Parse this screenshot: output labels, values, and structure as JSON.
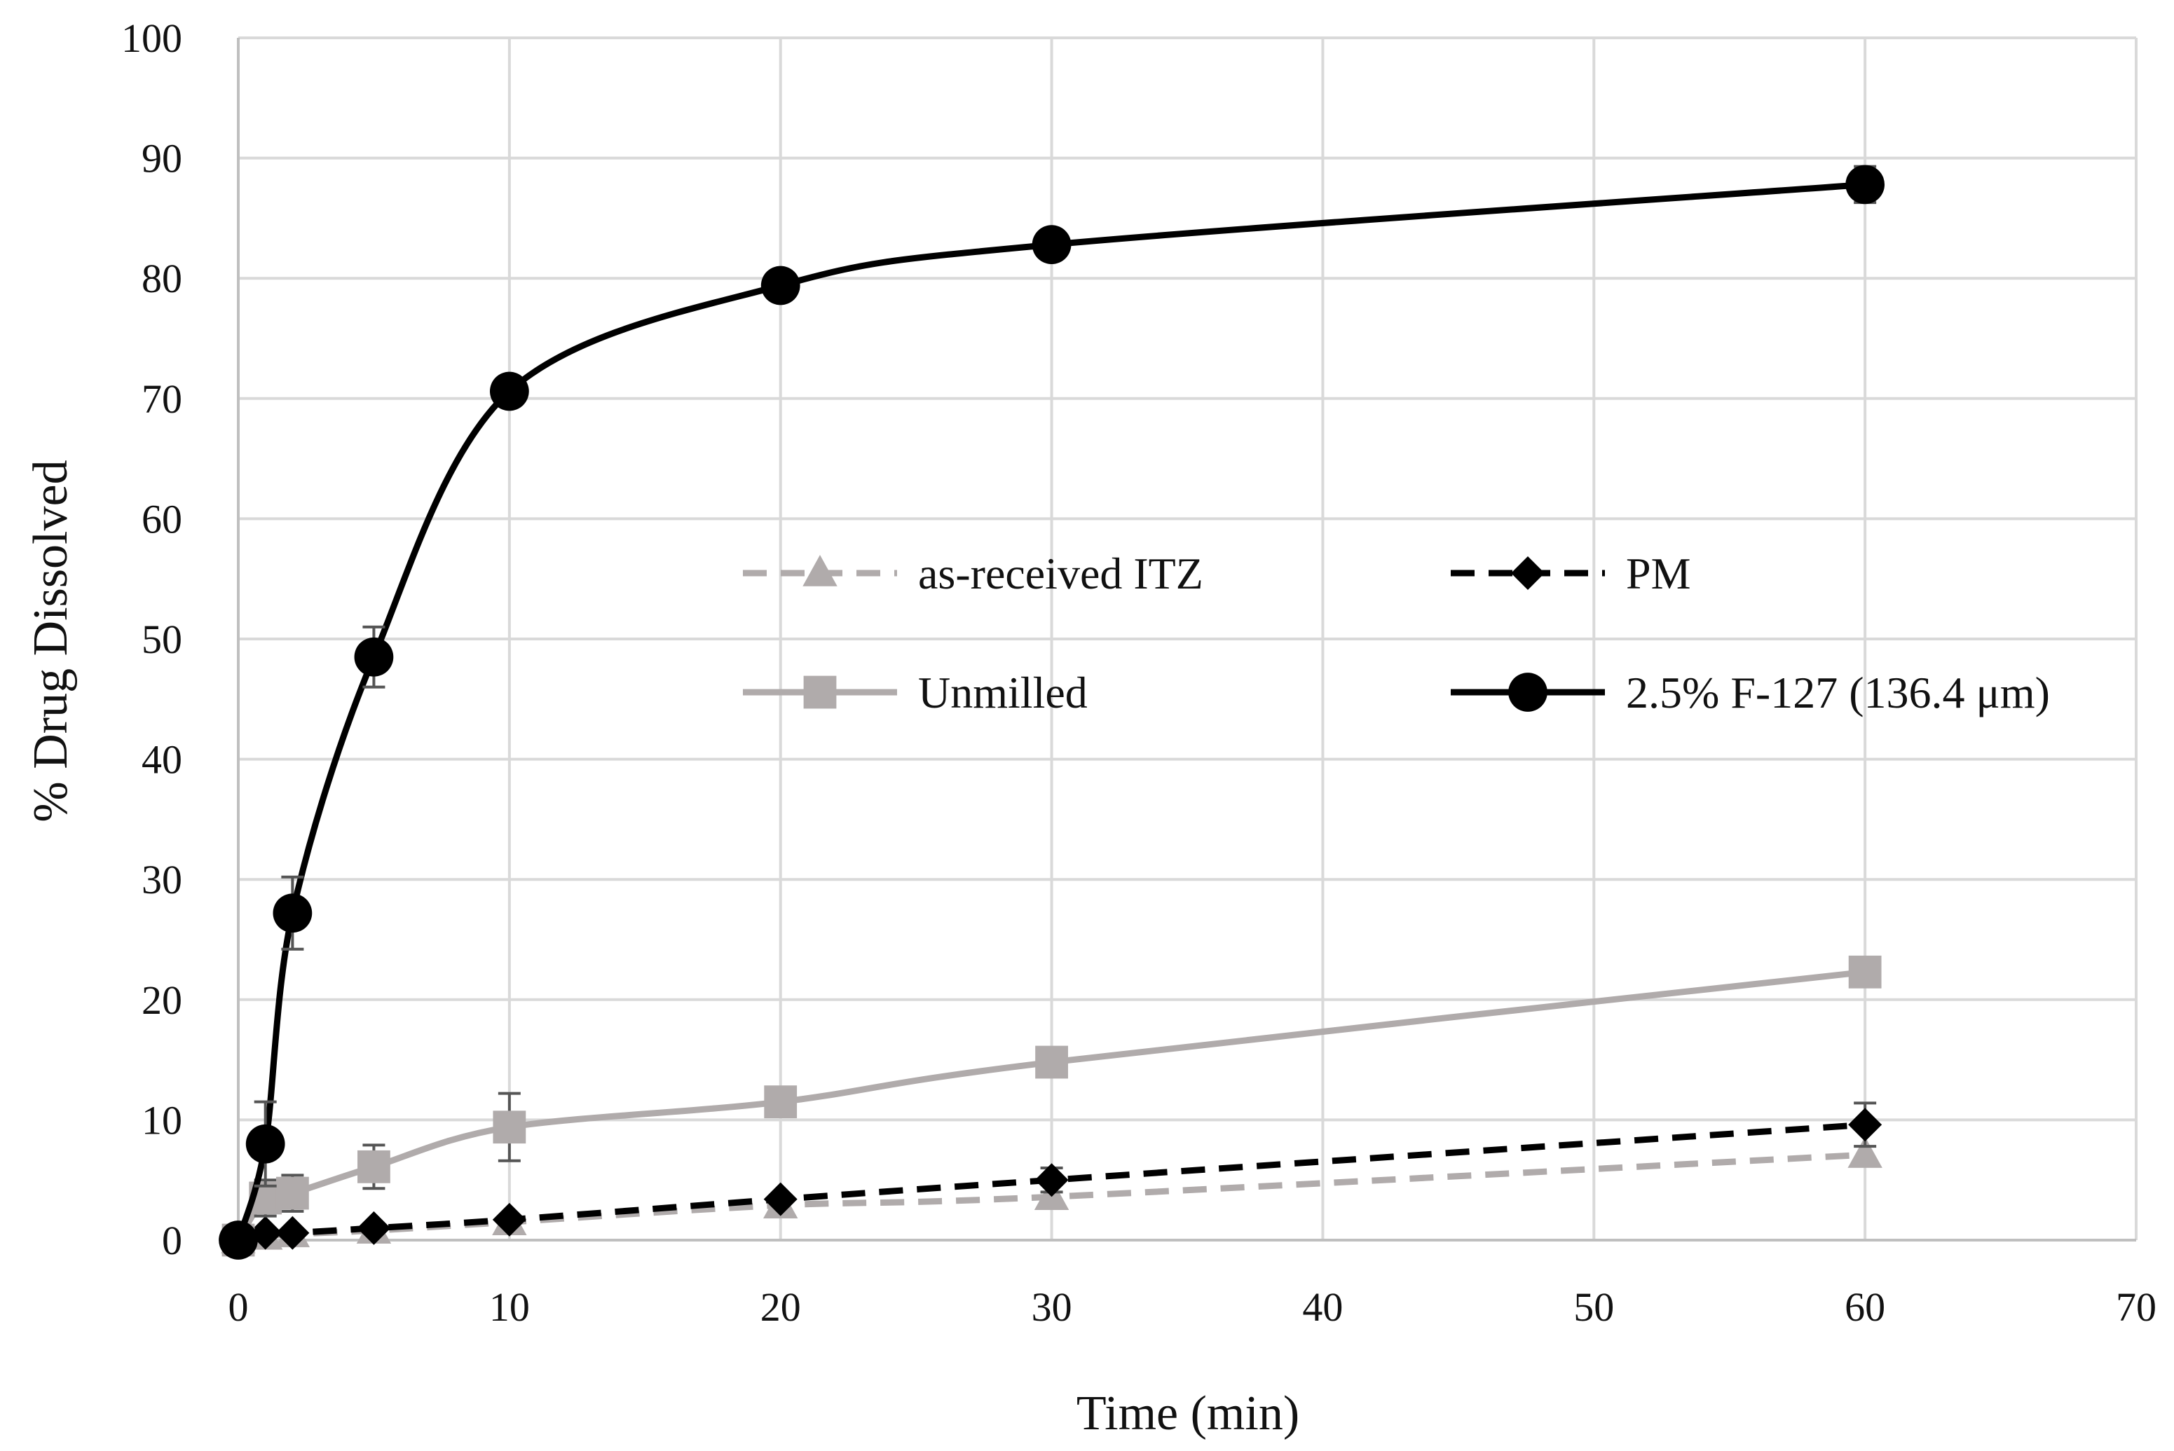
{
  "chart_data": {
    "type": "line",
    "title": "",
    "xlabel": "Time (min)",
    "ylabel": "% Drug Dissolved",
    "xlim": [
      0,
      70
    ],
    "ylim": [
      0,
      100
    ],
    "xticks": [
      0,
      10,
      20,
      30,
      40,
      50,
      60,
      70
    ],
    "yticks": [
      0,
      10,
      20,
      30,
      40,
      50,
      60,
      70,
      80,
      90,
      100
    ],
    "xtick_labels": [
      "0",
      "10",
      "20",
      "30",
      "40",
      "50",
      "60",
      "70"
    ],
    "ytick_labels": [
      "0",
      "10",
      "20",
      "30",
      "40",
      "50",
      "60",
      "70",
      "80",
      "90",
      "100"
    ],
    "grid": true,
    "legend_position": "center",
    "x": [
      0,
      1,
      2,
      5,
      10,
      20,
      30,
      60
    ],
    "series": [
      {
        "name": "as-received ITZ",
        "color": "#b0abab",
        "line": "dashed",
        "marker": "triangle",
        "values": [
          0,
          0.3,
          0.5,
          0.8,
          1.5,
          2.9,
          3.6,
          7.1
        ],
        "errors": [
          0,
          0,
          0,
          0,
          0,
          0,
          0,
          0
        ]
      },
      {
        "name": "PM",
        "color": "#000000",
        "line": "dashed",
        "marker": "diamond",
        "values": [
          0,
          0.6,
          0.6,
          1.0,
          1.7,
          3.4,
          5.0,
          9.6
        ],
        "errors": [
          0,
          0,
          0,
          0,
          0,
          0,
          1.0,
          1.8
        ]
      },
      {
        "name": "Unmilled",
        "color": "#b0abab",
        "line": "solid",
        "marker": "square",
        "values": [
          0,
          3.5,
          3.9,
          6.1,
          9.4,
          11.5,
          14.8,
          22.3
        ],
        "errors": [
          0,
          1.5,
          1.5,
          1.8,
          2.8,
          0,
          0,
          0
        ]
      },
      {
        "name": "2.5% F-127 (136.4 μm)",
        "color": "#000000",
        "line": "solid",
        "marker": "circle",
        "values": [
          0,
          8.0,
          27.2,
          48.5,
          70.6,
          79.4,
          82.8,
          87.8
        ],
        "errors": [
          0,
          3.5,
          3.0,
          2.5,
          0,
          1.0,
          0,
          1.5
        ]
      }
    ]
  }
}
